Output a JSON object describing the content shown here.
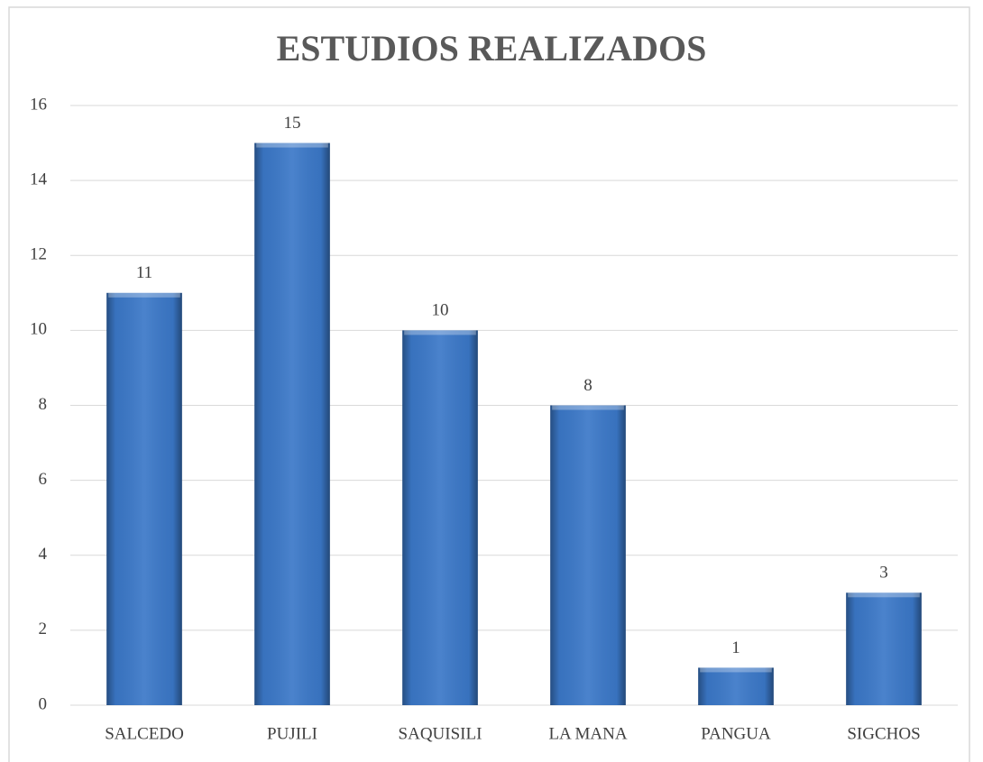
{
  "chart_data": {
    "type": "bar",
    "title": "ESTUDIOS REALIZADOS",
    "categories": [
      "SALCEDO",
      "PUJILI",
      "SAQUISILI",
      "LA MANA",
      "PANGUA",
      "SIGCHOS"
    ],
    "values": [
      11,
      15,
      10,
      8,
      1,
      3
    ],
    "color": "#3b78c8",
    "ylim": [
      0,
      16
    ],
    "yticks": [
      0,
      2,
      4,
      6,
      8,
      10,
      12,
      14,
      16
    ],
    "grid": true
  }
}
